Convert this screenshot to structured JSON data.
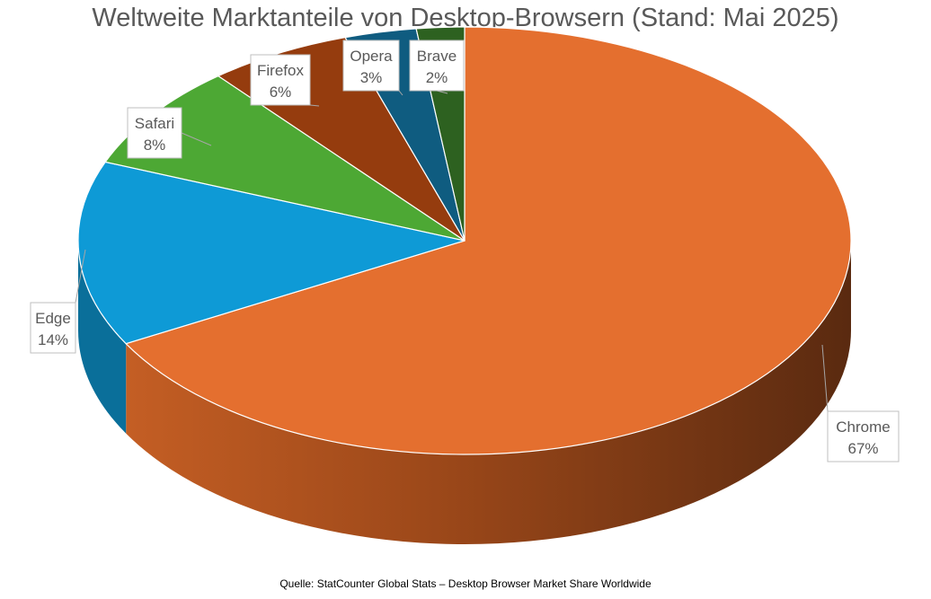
{
  "chart_data": {
    "type": "pie",
    "title": "Weltweite Marktanteile von Desktop-Browsern (Stand: Mai 2025)",
    "source": "Quelle: StatCounter Global Stats – Desktop Browser Market Share Worldwide",
    "style": "3d-pie",
    "slices": [
      {
        "label": "Chrome",
        "value": 67,
        "value_label": "67%",
        "color": "#E46F2F"
      },
      {
        "label": "Edge",
        "value": 14,
        "value_label": "14%",
        "color": "#0E9AD6"
      },
      {
        "label": "Safari",
        "value": 8,
        "value_label": "8%",
        "color": "#4DA834"
      },
      {
        "label": "Firefox",
        "value": 6,
        "value_label": "6%",
        "color": "#953C0E"
      },
      {
        "label": "Opera",
        "value": 3,
        "value_label": "3%",
        "color": "#0F5C80"
      },
      {
        "label": "Brave",
        "value": 2,
        "value_label": "2%",
        "color": "#2D6120"
      }
    ]
  }
}
